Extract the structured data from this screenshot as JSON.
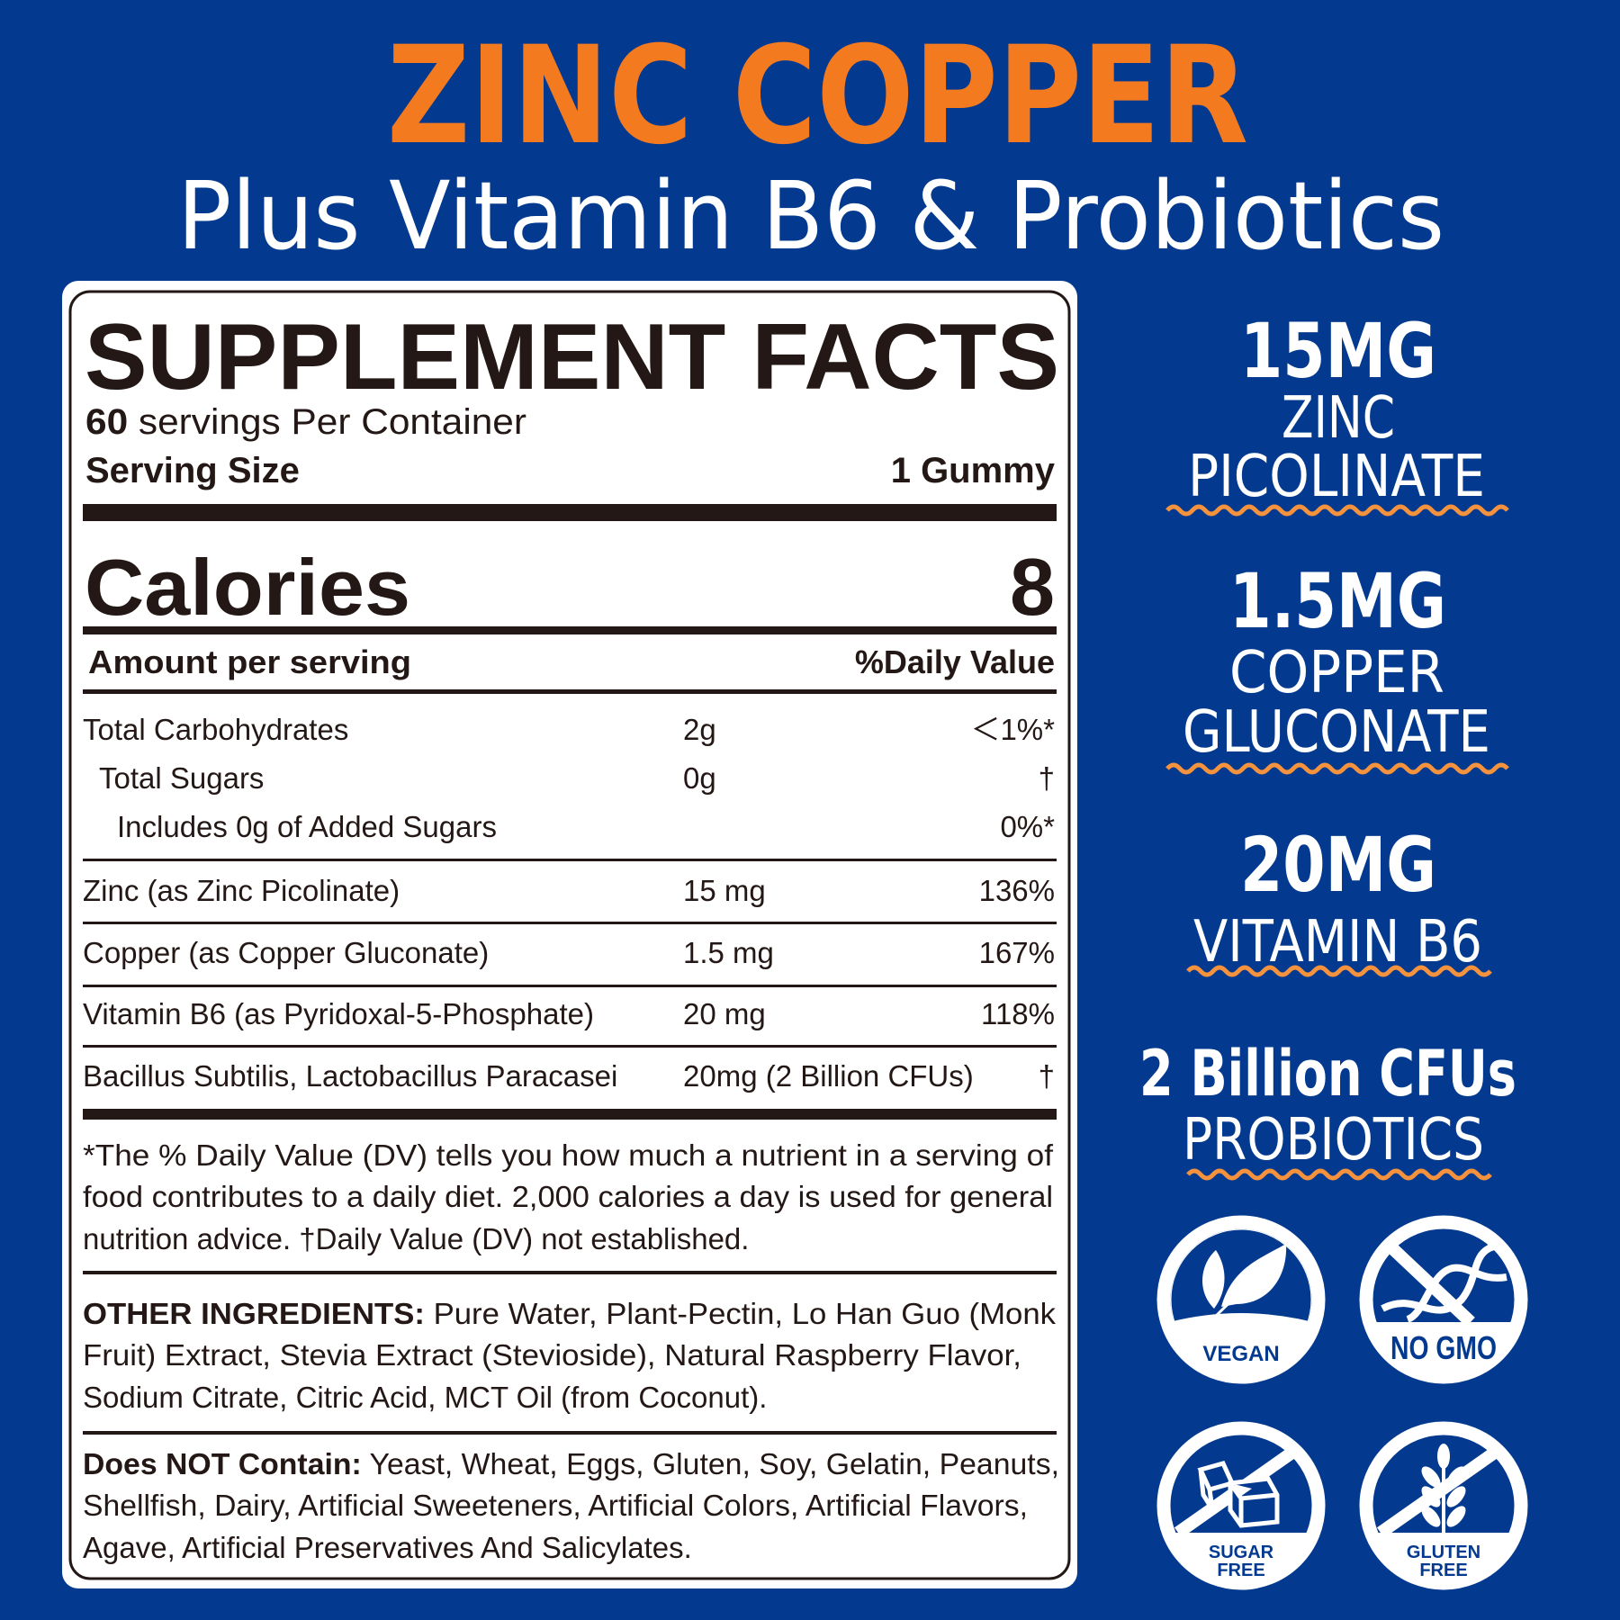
{
  "header": {
    "title": "ZINC COPPER",
    "subtitle": "Plus Vitamin B6 & Probiotics"
  },
  "colors": {
    "background": "#033a8f",
    "title_orange": "#f47a20",
    "wave_orange": "#f5923e",
    "label_ink": "#231815",
    "white": "#ffffff"
  },
  "facts": {
    "heading": "SUPPLEMENT FACTS",
    "servings_count": "60",
    "servings_text": " servings Per Container",
    "serving_size_label": "Serving Size",
    "serving_size_value": "1 Gummy",
    "calories_label": "Calories",
    "calories_value": "8",
    "amount_header": "Amount per serving",
    "dv_header": "%Daily Value",
    "rows": [
      {
        "name": "Total Carbohydrates",
        "amount": "2g",
        "dv": "＜1%*"
      },
      {
        "name": "Total Sugars",
        "amount": "0g",
        "dv": "†"
      },
      {
        "name": "Includes 0g of Added Sugars",
        "amount": "",
        "dv": "0%*"
      },
      {
        "name": "Zinc (as Zinc Picolinate)",
        "amount": "15 mg",
        "dv": "136%"
      },
      {
        "name": "Copper (as Copper Gluconate)",
        "amount": "1.5 mg",
        "dv": "167%"
      },
      {
        "name": "Vitamin B6 (as Pyridoxal-5-Phosphate)",
        "amount": "20 mg",
        "dv": "118%"
      },
      {
        "name": "Bacillus Subtilis, Lactobacillus Paracasei",
        "amount": "20mg (2 Billion CFUs)",
        "dv": "†"
      }
    ],
    "footnote_lines": [
      "*The % Daily Value (DV) tells you how much a nutrient in a serving of",
      "food contributes to a daily diet. 2,000 calories a day is used for general",
      "nutrition advice. †Daily Value (DV) not established."
    ],
    "other_ingredients_label": "OTHER INGREDIENTS:",
    "other_ingredients_lines": [
      " Pure Water, Plant-Pectin, Lo Han Guo (Monk",
      "Fruit) Extract, Stevia Extract (Stevioside), Natural Raspberry Flavor,",
      "Sodium Citrate, Citric Acid,  MCT Oil (from Coconut)."
    ],
    "does_not_contain_label": "Does NOT Contain:",
    "does_not_contain_lines": [
      " Yeast, Wheat, Eggs, Gluten, Soy, Gelatin, Peanuts,",
      "Shellfish, Dairy, Artificial Sweeteners, Artificial Colors, Artificial Flavors,",
      "Agave, Artificial Preservatives And Salicylates."
    ]
  },
  "highlights": [
    {
      "amount": "15MG",
      "lines": [
        "ZINC",
        "PICOLINATE"
      ]
    },
    {
      "amount": "1.5MG",
      "lines": [
        "COPPER",
        "GLUCONATE"
      ]
    },
    {
      "amount": "20MG",
      "lines": [
        "VITAMIN B6"
      ]
    },
    {
      "amount": "2 Billion CFUs",
      "lines": [
        "PROBIOTICS"
      ]
    }
  ],
  "badges": [
    {
      "icon": "leaf-icon",
      "label_lines": [
        "VEGAN"
      ]
    },
    {
      "icon": "dna-crossed-icon",
      "label_lines": [
        "NO GMO"
      ]
    },
    {
      "icon": "sugar-cubes-crossed-icon",
      "label_lines": [
        "SUGAR",
        "FREE"
      ]
    },
    {
      "icon": "wheat-crossed-icon",
      "label_lines": [
        "GLUTEN",
        "FREE"
      ]
    }
  ]
}
